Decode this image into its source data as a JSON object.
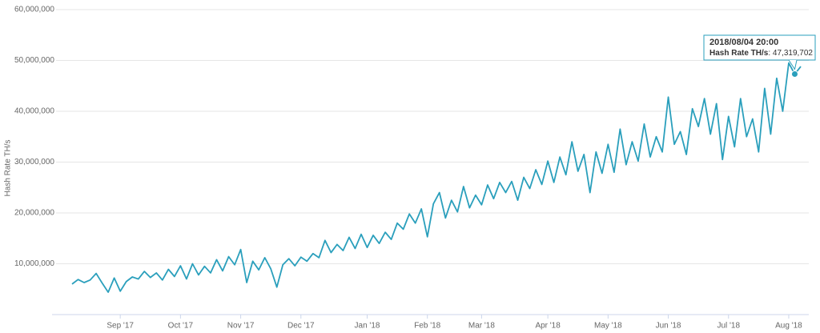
{
  "chart_data": {
    "type": "line",
    "y_label": "Hash Rate TH/s",
    "categories": [
      null,
      null,
      null,
      null,
      null,
      null,
      null,
      null,
      "Sep '17",
      null,
      null,
      null,
      null,
      null,
      null,
      null,
      null,
      null,
      "Oct '17",
      null,
      null,
      null,
      null,
      null,
      null,
      null,
      null,
      null,
      "Nov '17",
      null,
      null,
      null,
      null,
      null,
      null,
      null,
      null,
      null,
      "Dec '17",
      null,
      null,
      null,
      null,
      null,
      null,
      null,
      null,
      null,
      null,
      "Jan '18",
      null,
      null,
      null,
      null,
      null,
      null,
      null,
      null,
      null,
      "Feb '18",
      null,
      null,
      null,
      null,
      null,
      null,
      null,
      null,
      "Mar '18",
      null,
      null,
      null,
      null,
      null,
      null,
      null,
      null,
      null,
      null,
      "Apr '18",
      null,
      null,
      null,
      null,
      null,
      null,
      null,
      null,
      null,
      "May '18",
      null,
      null,
      null,
      null,
      null,
      null,
      null,
      null,
      null,
      "Jun '18",
      null,
      null,
      null,
      null,
      null,
      null,
      null,
      null,
      null,
      "Jul '18",
      null,
      null,
      null,
      null,
      null,
      null,
      null,
      null,
      null,
      "Aug '18",
      null,
      null
    ],
    "series": [
      {
        "name": "Hash Rate TH/s",
        "color": "#2a9fbc",
        "values": [
          6000000,
          6900000,
          6300000,
          6800000,
          8100000,
          6200000,
          4400000,
          7200000,
          4600000,
          6500000,
          7400000,
          7000000,
          8500000,
          7300000,
          8200000,
          6800000,
          8900000,
          7500000,
          9600000,
          7000000,
          10000000,
          7800000,
          9500000,
          8200000,
          10800000,
          8600000,
          11400000,
          9800000,
          12800000,
          6300000,
          10500000,
          8800000,
          11200000,
          9000000,
          5400000,
          9800000,
          11000000,
          9600000,
          11300000,
          10500000,
          12000000,
          11200000,
          14600000,
          12200000,
          13800000,
          12600000,
          15200000,
          13000000,
          15800000,
          13200000,
          15600000,
          14000000,
          16200000,
          14800000,
          18000000,
          16800000,
          19800000,
          18000000,
          20800000,
          15300000,
          21800000,
          24000000,
          19000000,
          22500000,
          20200000,
          25200000,
          21000000,
          23500000,
          21600000,
          25500000,
          22800000,
          26000000,
          24000000,
          26200000,
          22500000,
          27000000,
          24800000,
          28500000,
          25600000,
          30200000,
          26000000,
          31000000,
          27500000,
          34000000,
          28200000,
          31500000,
          24000000,
          32000000,
          27800000,
          33500000,
          28000000,
          36500000,
          29500000,
          34000000,
          30200000,
          37500000,
          31000000,
          35000000,
          32000000,
          42800000,
          33500000,
          36000000,
          31500000,
          40500000,
          37000000,
          42500000,
          35500000,
          41500000,
          30500000,
          39000000,
          33000000,
          42500000,
          35000000,
          38500000,
          32000000,
          44500000,
          35500000,
          46500000,
          40000000,
          49500000,
          47319702,
          48800000
        ]
      }
    ],
    "ylim": [
      0,
      60000000
    ],
    "yticks": [
      {
        "value": 10000000,
        "label": "10,000,000"
      },
      {
        "value": 20000000,
        "label": "20,000,000"
      },
      {
        "value": 30000000,
        "label": "30,000,000"
      },
      {
        "value": 40000000,
        "label": "40,000,000"
      },
      {
        "value": 50000000,
        "label": "50,000,000"
      },
      {
        "value": 60000000,
        "label": "60,000,000"
      }
    ],
    "grid": true,
    "tooltip": {
      "x": "2018/08/04 20:00",
      "value": 47319702,
      "value_label": "47,319,702"
    }
  }
}
